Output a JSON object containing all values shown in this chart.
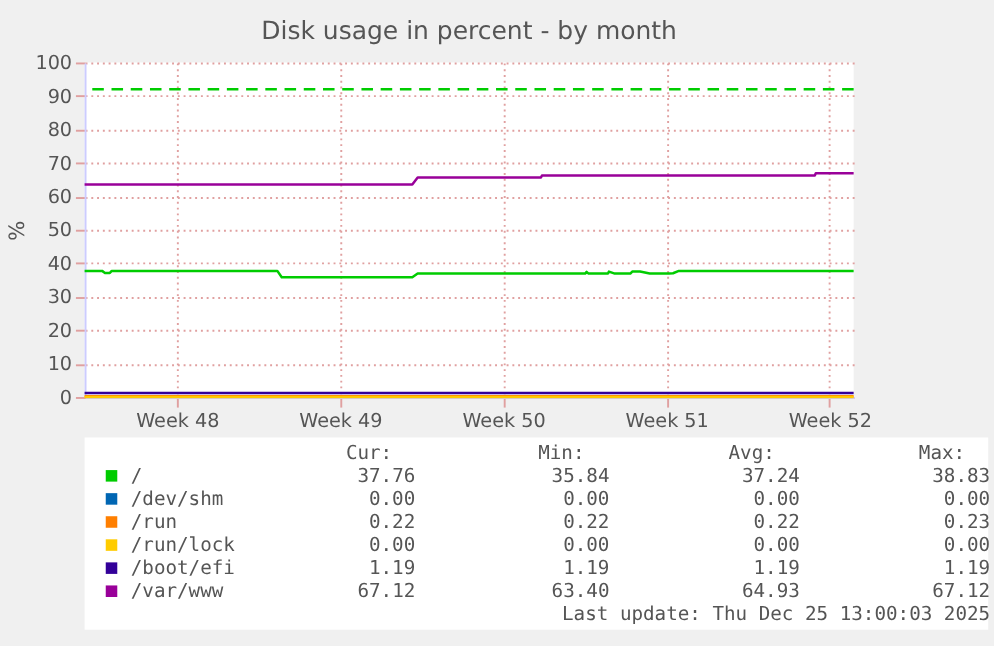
{
  "chart_data": {
    "type": "line",
    "title": "Disk usage in percent - by month",
    "ylabel": "%",
    "xlim": [
      "2025-11-22T13:00",
      "2025-12-25T13:00"
    ],
    "xticks": [
      {
        "value": "2025-11-26T12:00",
        "label": "Week 48"
      },
      {
        "value": "2025-12-03T12:00",
        "label": "Week 49"
      },
      {
        "value": "2025-12-10T12:00",
        "label": "Week 50"
      },
      {
        "value": "2025-12-17T12:00",
        "label": "Week 51"
      },
      {
        "value": "2025-12-24T12:00",
        "label": "Week 52"
      }
    ],
    "ylim": [
      0,
      100
    ],
    "yticks": [
      0,
      10,
      20,
      30,
      40,
      50,
      60,
      70,
      80,
      90,
      100
    ],
    "grid": true,
    "legend": "bottom",
    "line_style": "solid",
    "marker": "none",
    "series": [
      {
        "name": "/",
        "color": "#00cc00",
        "x": [
          "2025-11-22T13:00",
          "2025-11-23T07:00",
          "2025-11-23T10:00",
          "2025-11-23T15:00",
          "2025-11-23T17:00",
          "2025-11-30T19:30",
          "2025-12-01T00:00",
          "2025-12-06T14:30",
          "2025-12-06T20:00",
          "2025-12-14T00:30",
          "2025-12-14T02:00",
          "2025-12-14T04:00",
          "2025-12-15T00:00",
          "2025-12-15T01:00",
          "2025-12-15T07:00",
          "2025-12-15T23:00",
          "2025-12-16T01:00",
          "2025-12-16T09:00",
          "2025-12-16T19:00",
          "2025-12-17T15:00",
          "2025-12-17T19:00",
          "2025-12-18T01:00",
          "2025-12-25T13:00"
        ],
        "values": [
          37.7,
          37.7,
          37.1,
          37.1,
          37.7,
          37.7,
          35.8,
          35.8,
          36.9,
          36.9,
          37.4,
          36.9,
          36.9,
          37.5,
          36.9,
          36.9,
          37.5,
          37.5,
          36.9,
          36.9,
          37.0,
          37.7,
          37.7
        ]
      },
      {
        "name": "/dev/shm",
        "color": "#0066b3"
      },
      {
        "name": "/run",
        "color": "#ff7f00",
        "x": [
          "2025-11-22T13:00",
          "2025-12-25T13:00"
        ],
        "values": [
          0.2,
          0.2
        ]
      },
      {
        "name": "/run/lock",
        "color": "#ffcc00",
        "x": [
          "2025-11-22T13:00",
          "2025-12-25T13:00"
        ],
        "values": [
          0,
          0
        ]
      },
      {
        "name": "/boot/efi",
        "color": "#330099",
        "x": [
          "2025-11-22T13:00",
          "2025-12-25T13:00"
        ],
        "values": [
          1.2,
          1.2
        ]
      },
      {
        "name": "/var/www",
        "color": "#990099",
        "x": [
          "2025-11-22T13:00",
          "2025-12-06T14:30",
          "2025-12-06T20:00",
          "2025-12-12T03:00",
          "2025-12-12T04:00",
          "2025-12-23T21:00",
          "2025-12-23T22:00",
          "2025-12-25T13:00"
        ],
        "values": [
          63.5,
          63.5,
          65.6,
          65.6,
          66.2,
          66.2,
          66.9,
          66.9
        ]
      }
    ],
    "ref_lines": [
      {
        "axis": "y",
        "value": 92,
        "color": "#00cc00",
        "line_style": "dashed"
      }
    ],
    "annotations": [
      "Cur:",
      "Min:",
      "Avg:",
      "Max:",
      "37.76",
      "35.84",
      "37.24",
      "38.83",
      "0.00",
      "0.00",
      "0.00",
      "0.00",
      "0.22",
      "0.22",
      "0.22",
      "0.23",
      "0.00",
      "0.00",
      "0.00",
      "0.00",
      "1.19",
      "1.19",
      "1.19",
      "1.19",
      "67.12",
      "63.40",
      "64.93",
      "67.12",
      "Last update: Thu Dec 25 13:00:03 2025"
    ]
  }
}
